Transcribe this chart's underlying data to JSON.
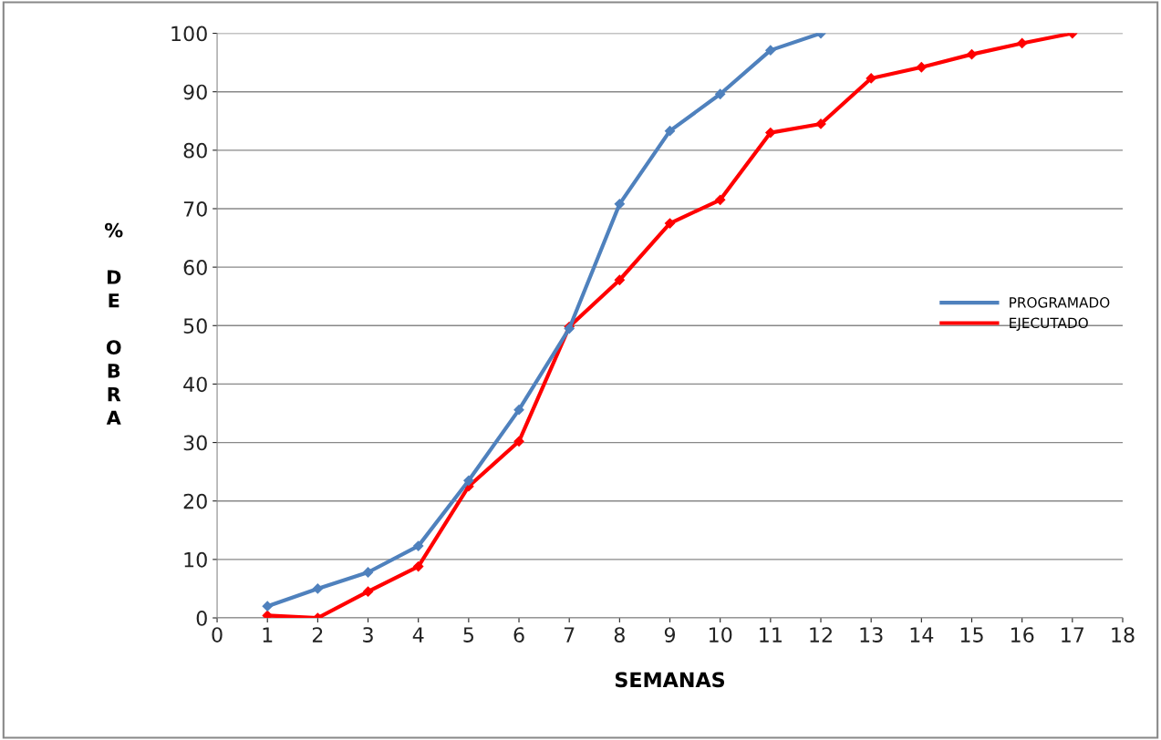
{
  "chart_data": {
    "type": "line",
    "xlabel": "SEMANAS",
    "ylabel": "% DE OBRA",
    "xlim": [
      0,
      18
    ],
    "xticks": [
      0,
      1,
      2,
      3,
      4,
      5,
      6,
      7,
      8,
      9,
      10,
      11,
      12,
      13,
      14,
      15,
      16,
      17,
      18
    ],
    "ylim": [
      0,
      100
    ],
    "yticks": [
      0,
      10,
      20,
      30,
      40,
      50,
      60,
      70,
      80,
      90,
      100
    ],
    "grid": "y",
    "legend": "right",
    "marker": "diamond",
    "line_style": "solid",
    "series": [
      {
        "name": "PROGRAMADO",
        "color": "#4f81bd",
        "x": [
          1,
          2,
          3,
          4,
          5,
          6,
          7,
          8,
          9,
          10,
          11,
          12
        ],
        "values": [
          2,
          5,
          7.8,
          12.3,
          23.5,
          35.6,
          49.5,
          70.8,
          83.3,
          89.6,
          97.1,
          100
        ]
      },
      {
        "name": "EJECUTADO",
        "color": "#ff0000",
        "x": [
          1,
          2,
          3,
          4,
          5,
          6,
          7,
          8,
          9,
          10,
          11,
          12,
          13,
          14,
          15,
          16,
          17
        ],
        "values": [
          0.4,
          0,
          4.5,
          8.8,
          22.5,
          30.2,
          49.8,
          57.8,
          67.5,
          71.5,
          83,
          84.5,
          92.3,
          94.2,
          96.4,
          98.3,
          100
        ]
      }
    ]
  }
}
